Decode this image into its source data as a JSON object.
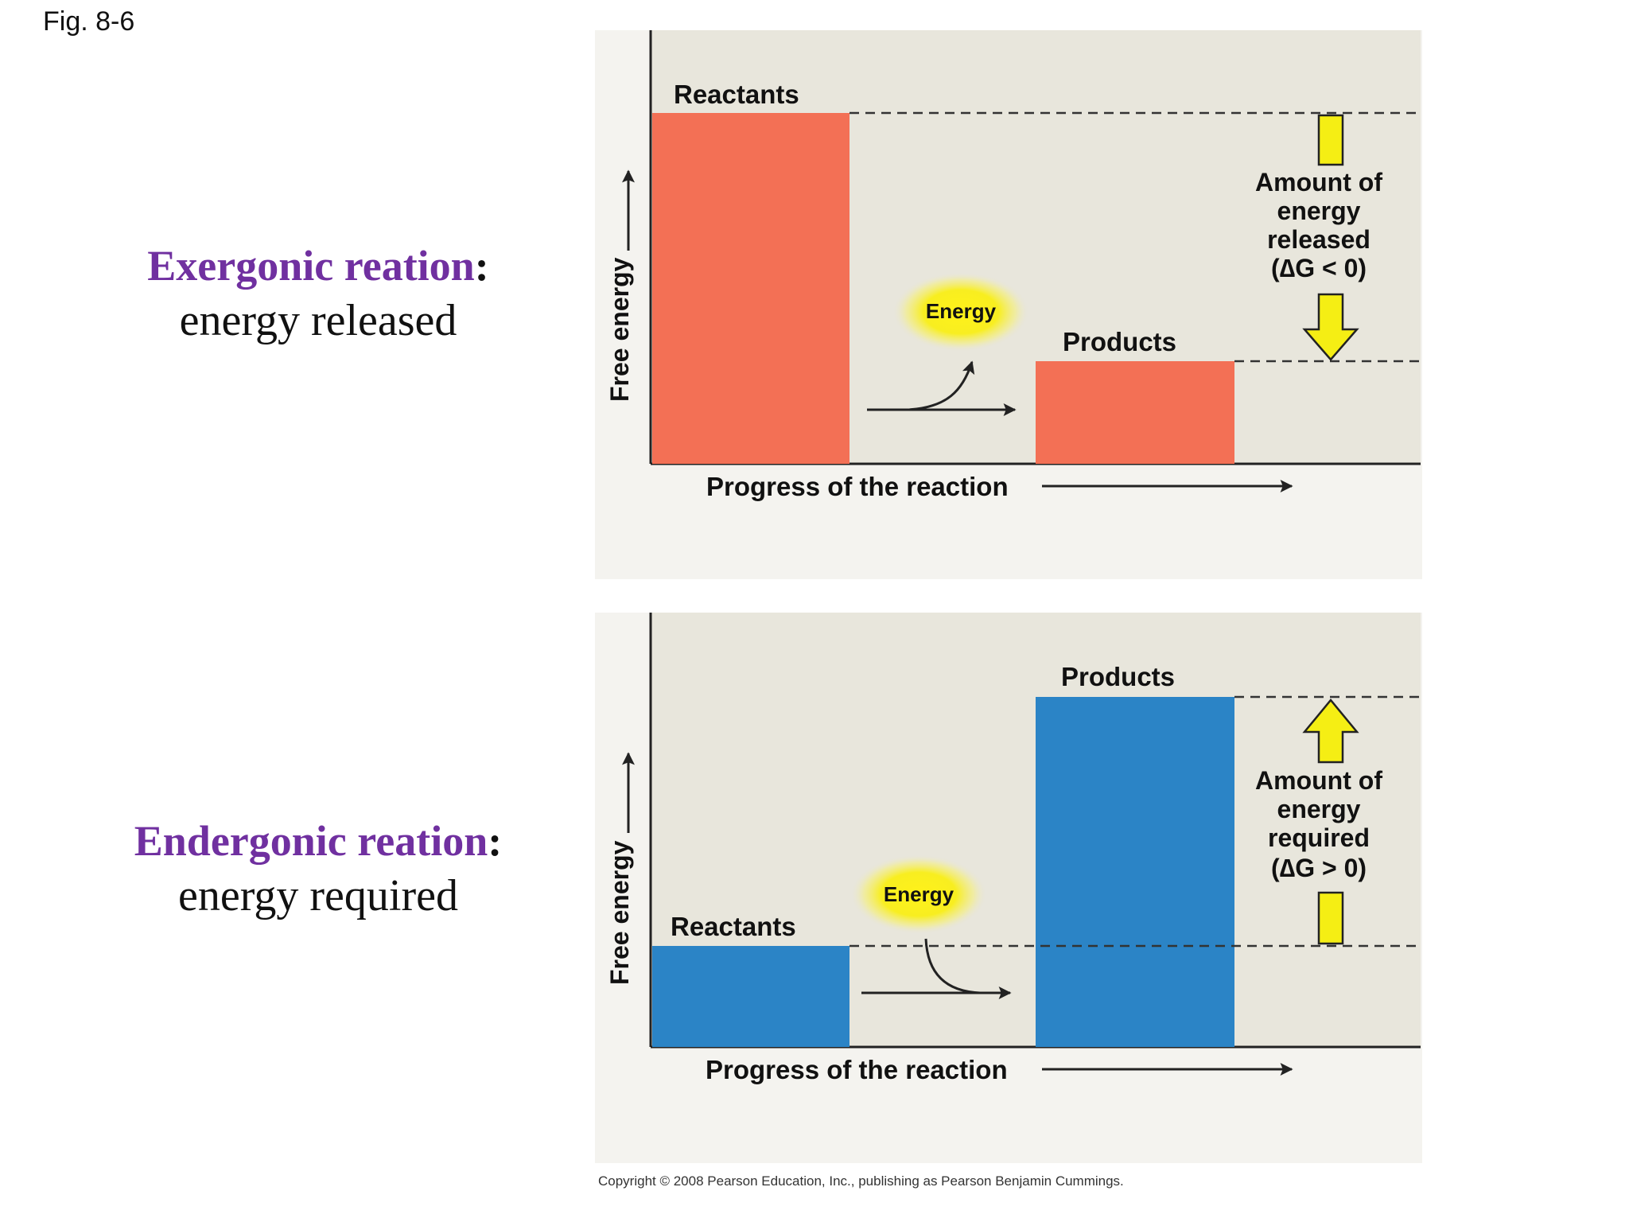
{
  "figure_label": "Fig. 8-6",
  "exergonic": {
    "term": "Exergonic reation",
    "colon": ":",
    "description": "energy released",
    "y_axis_label": "Free energy",
    "x_axis_label": "Progress of the reaction",
    "reactants_label": "Reactants",
    "products_label": "Products",
    "energy_label": "Energy",
    "delta_label": [
      "Amount of",
      "energy",
      "released",
      "(∆G < 0)"
    ],
    "bar_color": "#f37055"
  },
  "endergonic": {
    "term": "Endergonic reation",
    "colon": ":",
    "description": "energy required",
    "y_axis_label": "Free energy",
    "x_axis_label": "Progress of the reaction",
    "reactants_label": "Reactants",
    "products_label": "Products",
    "energy_label": "Energy",
    "delta_label": [
      "Amount of",
      "energy",
      "required",
      "(∆G > 0)"
    ],
    "bar_color": "#2b84c6"
  },
  "colors": {
    "panel_bg": "#e8e6dc",
    "panel_outer": "#f4f3ef",
    "arrow_yellow": "#f5ee14",
    "term_purple": "#7030a0"
  },
  "copyright": "Copyright © 2008 Pearson Education, Inc., publishing as Pearson Benjamin Cummings."
}
